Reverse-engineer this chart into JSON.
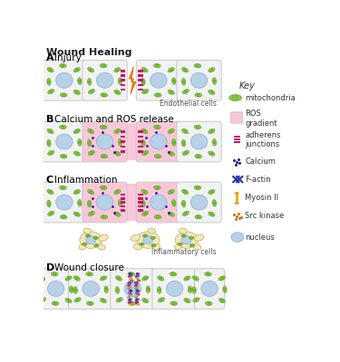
{
  "title": "Wound Healing",
  "bg_color": "#ffffff",
  "cell_bg": "#f2f2f2",
  "cell_border": "#c8c8c8",
  "nucleus_color": "#b8d0e8",
  "mito_fill": "#88cc44",
  "mito_edge": "#559922",
  "ros_pink": "#f9c8d8",
  "adherens_color": "#cc1166",
  "calcium_color": "#330099",
  "actin_color": "#2233aa",
  "myosin_color": "#ddaa22",
  "srckinase_color": "#cc6611",
  "infl_cell_color": "#f0e8c0",
  "infl_cell_border": "#c8a850",
  "lightning_color": "#ee8800",
  "panel_labels": [
    "A",
    "B",
    "C",
    "D"
  ],
  "panel_titles": [
    "Injury",
    "Calcium and ROS release",
    "Inflammation",
    "Wound closure"
  ]
}
